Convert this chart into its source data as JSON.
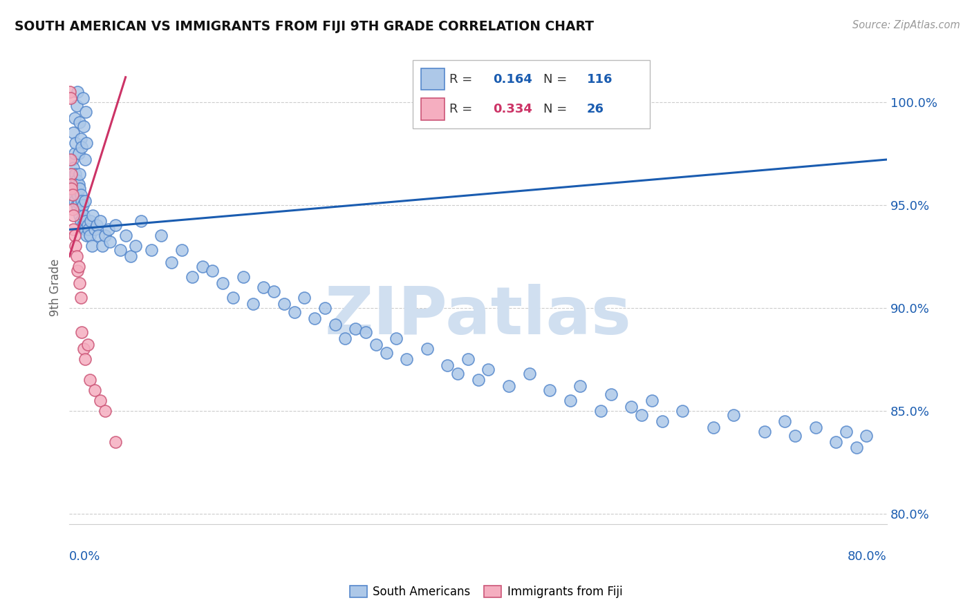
{
  "title": "SOUTH AMERICAN VS IMMIGRANTS FROM FIJI 9TH GRADE CORRELATION CHART",
  "source_text": "Source: ZipAtlas.com",
  "ylabel": "9th Grade",
  "xlim": [
    0.0,
    80.0
  ],
  "ylim": [
    79.5,
    102.5
  ],
  "yticks": [
    80.0,
    85.0,
    90.0,
    95.0,
    100.0
  ],
  "ytick_labels": [
    "80.0%",
    "85.0%",
    "90.0%",
    "95.0%",
    "100.0%"
  ],
  "blue_R": 0.164,
  "blue_N": 116,
  "pink_R": 0.334,
  "pink_N": 26,
  "blue_color": "#adc8e8",
  "pink_color": "#f5aec0",
  "blue_edge_color": "#5588cc",
  "pink_edge_color": "#cc5577",
  "blue_line_color": "#1a5cb0",
  "pink_line_color": "#cc3366",
  "legend_blue_label": "South Americans",
  "legend_pink_label": "Immigrants from Fiji",
  "watermark": "ZIPatlas",
  "watermark_color": "#d0dff0",
  "blue_line_x": [
    0.0,
    80.0
  ],
  "blue_line_y": [
    93.8,
    97.2
  ],
  "pink_line_x": [
    0.0,
    5.5
  ],
  "pink_line_y": [
    92.5,
    101.2
  ],
  "blue_scatter_x": [
    0.2,
    0.3,
    0.3,
    0.4,
    0.4,
    0.5,
    0.5,
    0.5,
    0.6,
    0.6,
    0.7,
    0.7,
    0.8,
    0.8,
    0.9,
    0.9,
    1.0,
    1.0,
    1.0,
    1.1,
    1.1,
    1.2,
    1.2,
    1.3,
    1.3,
    1.4,
    1.5,
    1.5,
    1.6,
    1.7,
    1.8,
    1.9,
    2.0,
    2.1,
    2.2,
    2.3,
    2.5,
    2.7,
    2.8,
    3.0,
    3.2,
    3.5,
    3.8,
    4.0,
    4.5,
    5.0,
    5.5,
    6.0,
    6.5,
    7.0,
    8.0,
    9.0,
    10.0,
    11.0,
    12.0,
    13.0,
    14.0,
    15.0,
    16.0,
    17.0,
    18.0,
    19.0,
    20.0,
    21.0,
    22.0,
    23.0,
    24.0,
    25.0,
    26.0,
    27.0,
    28.0,
    29.0,
    30.0,
    31.0,
    32.0,
    33.0,
    35.0,
    37.0,
    38.0,
    39.0,
    40.0,
    41.0,
    43.0,
    45.0,
    47.0,
    49.0,
    50.0,
    52.0,
    53.0,
    55.0,
    56.0,
    57.0,
    58.0,
    60.0,
    63.0,
    65.0,
    68.0,
    70.0,
    71.0,
    73.0,
    75.0,
    76.0,
    77.0,
    78.0,
    0.4,
    0.5,
    0.6,
    0.7,
    0.8,
    0.9,
    1.0,
    1.1,
    1.2,
    1.3,
    1.4,
    1.5,
    1.6,
    1.7
  ],
  "blue_scatter_y": [
    96.5,
    95.8,
    97.2,
    95.5,
    96.8,
    95.2,
    96.0,
    97.5,
    95.8,
    96.5,
    95.0,
    96.2,
    94.8,
    95.5,
    95.1,
    96.0,
    94.5,
    95.8,
    96.5,
    94.2,
    95.5,
    94.8,
    95.2,
    94.0,
    95.0,
    94.5,
    93.8,
    95.2,
    94.2,
    93.5,
    94.0,
    93.8,
    93.5,
    94.2,
    93.0,
    94.5,
    93.8,
    94.0,
    93.5,
    94.2,
    93.0,
    93.5,
    93.8,
    93.2,
    94.0,
    92.8,
    93.5,
    92.5,
    93.0,
    94.2,
    92.8,
    93.5,
    92.2,
    92.8,
    91.5,
    92.0,
    91.8,
    91.2,
    90.5,
    91.5,
    90.2,
    91.0,
    90.8,
    90.2,
    89.8,
    90.5,
    89.5,
    90.0,
    89.2,
    88.5,
    89.0,
    88.8,
    88.2,
    87.8,
    88.5,
    87.5,
    88.0,
    87.2,
    86.8,
    87.5,
    86.5,
    87.0,
    86.2,
    86.8,
    86.0,
    85.5,
    86.2,
    85.0,
    85.8,
    85.2,
    84.8,
    85.5,
    84.5,
    85.0,
    84.2,
    84.8,
    84.0,
    84.5,
    83.8,
    84.2,
    83.5,
    84.0,
    83.2,
    83.8,
    98.5,
    99.2,
    98.0,
    99.8,
    100.5,
    97.5,
    99.0,
    98.2,
    97.8,
    100.2,
    98.8,
    97.2,
    99.5,
    98.0
  ],
  "pink_scatter_x": [
    0.05,
    0.1,
    0.1,
    0.15,
    0.2,
    0.2,
    0.3,
    0.3,
    0.4,
    0.4,
    0.5,
    0.6,
    0.7,
    0.8,
    0.9,
    1.0,
    1.1,
    1.2,
    1.4,
    1.5,
    1.8,
    2.0,
    2.5,
    3.0,
    3.5,
    4.5
  ],
  "pink_scatter_y": [
    100.5,
    97.2,
    100.2,
    96.5,
    96.0,
    95.8,
    95.5,
    94.8,
    94.5,
    93.8,
    93.5,
    93.0,
    92.5,
    91.8,
    92.0,
    91.2,
    90.5,
    88.8,
    88.0,
    87.5,
    88.2,
    86.5,
    86.0,
    85.5,
    85.0,
    83.5
  ]
}
